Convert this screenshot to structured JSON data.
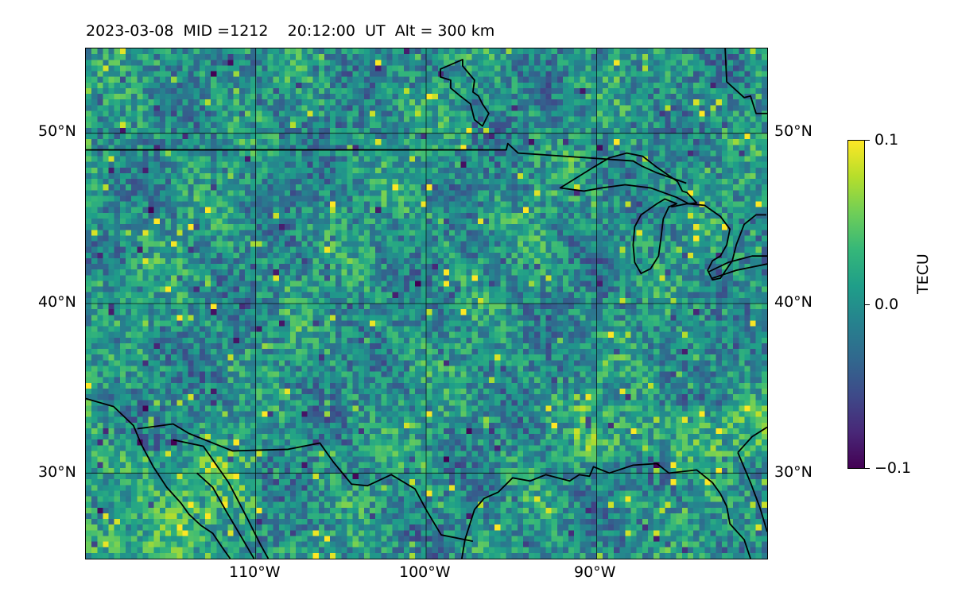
{
  "header": {
    "date": "2023-03-08",
    "mid": "MID =1212",
    "time": "20:12:00",
    "ut": "UT",
    "alt": "Alt = 300 km"
  },
  "map": {
    "lon_range": [
      -120,
      -80
    ],
    "lat_range": [
      25,
      55
    ],
    "lat_ticks": [
      {
        "value": 50,
        "label": "50°N"
      },
      {
        "value": 40,
        "label": "40°N"
      },
      {
        "value": 30,
        "label": "30°N"
      }
    ],
    "lon_ticks": [
      {
        "value": -110,
        "label": "110°W"
      },
      {
        "value": -100,
        "label": "100°W"
      },
      {
        "value": -90,
        "label": "90°W"
      }
    ],
    "gridlines": true,
    "coastline_color": "#000000"
  },
  "colorbar": {
    "min": -0.1,
    "max": 0.1,
    "ticks": [
      {
        "value": 0.1,
        "label": "0.1"
      },
      {
        "value": 0.0,
        "label": "0.0"
      },
      {
        "value": -0.1,
        "label": "−0.1"
      }
    ],
    "unit_label": "TECU",
    "colormap": "viridis"
  },
  "chart_data": {
    "type": "heatmap",
    "x_range": [
      -120,
      -80
    ],
    "y_range": [
      25,
      55
    ],
    "value_range": [
      -0.1,
      0.1
    ],
    "colorbar_label": "TECU"
  }
}
